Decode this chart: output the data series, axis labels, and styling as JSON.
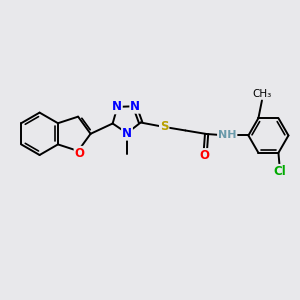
{
  "background_color": "#e8e8eb",
  "bond_color": "#000000",
  "atom_colors": {
    "N": "#0000ff",
    "O": "#ff0000",
    "S": "#b8a000",
    "Cl": "#00aa00",
    "C": "#000000",
    "H": "#6a9aaa"
  },
  "line_width": 1.4,
  "font_size": 8.5,
  "fig_width": 3.0,
  "fig_height": 3.0,
  "dpi": 100
}
